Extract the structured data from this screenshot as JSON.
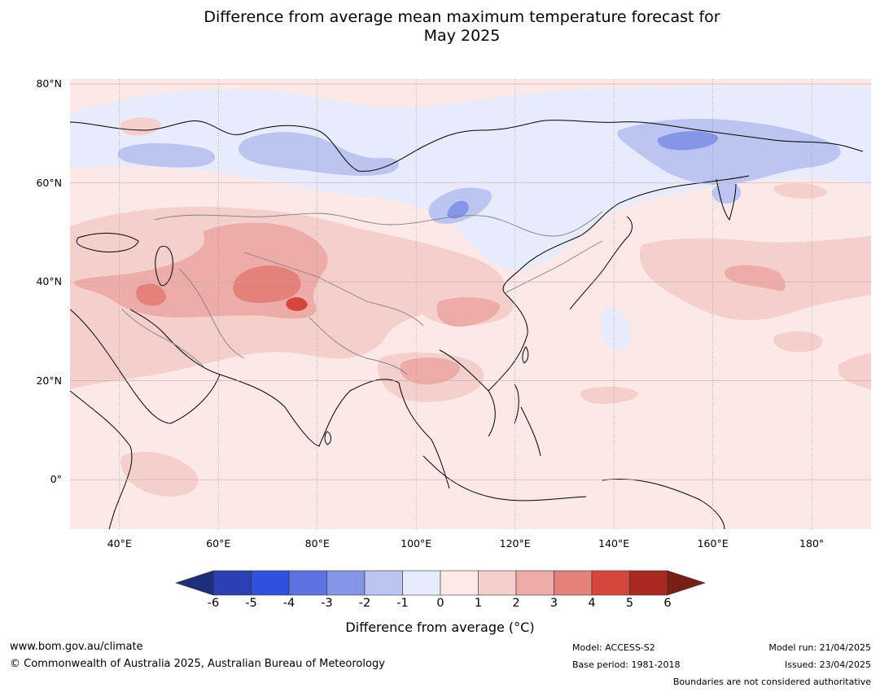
{
  "title_line1": "Difference from average mean maximum temperature forecast for",
  "title_line2": "May 2025",
  "map": {
    "region": "Asia",
    "projection": "equirectangular",
    "lon_range": [
      30,
      192
    ],
    "lat_range": [
      -10,
      81
    ],
    "lat_ticks": [
      {
        "value": 80,
        "label": "80°N"
      },
      {
        "value": 60,
        "label": "60°N"
      },
      {
        "value": 40,
        "label": "40°N"
      },
      {
        "value": 20,
        "label": "20°N"
      },
      {
        "value": 0,
        "label": "0°"
      }
    ],
    "lon_ticks": [
      {
        "value": 40,
        "label": "40°E"
      },
      {
        "value": 60,
        "label": "60°E"
      },
      {
        "value": 80,
        "label": "80°E"
      },
      {
        "value": 100,
        "label": "100°E"
      },
      {
        "value": 120,
        "label": "120°E"
      },
      {
        "value": 140,
        "label": "140°E"
      },
      {
        "value": 160,
        "label": "160°E"
      },
      {
        "value": 180,
        "label": "180°"
      }
    ],
    "background_color": "#fce9e7",
    "coastline_color": "#000000",
    "border_color": "#808080"
  },
  "colorbar": {
    "title": "Difference from average (°C)",
    "ticks": [
      "-6",
      "-5",
      "-4",
      "-3",
      "-2",
      "-1",
      "0",
      "1",
      "2",
      "3",
      "4",
      "5",
      "6"
    ],
    "colors": [
      "#2b3fb0",
      "#3150de",
      "#5e72e2",
      "#8595e8",
      "#bcc4f1",
      "#e8ebfb",
      "#fde9e7",
      "#f5cfcc",
      "#edaca7",
      "#e4817b",
      "#d6463c",
      "#aa2920"
    ],
    "under_color": "#1f2e7a",
    "over_color": "#7a1f18"
  },
  "footer": {
    "url": "www.bom.gov.au/climate",
    "copyright": "© Commonwealth of Australia 2025, Australian Bureau of Meteorology",
    "model": "Model: ACCESS-S2",
    "base_period": "Base period: 1981-2018",
    "model_run": "Model run: 21/04/2025",
    "issued": "Issued: 23/04/2025",
    "boundaries": "Boundaries are not considered authoritative"
  }
}
